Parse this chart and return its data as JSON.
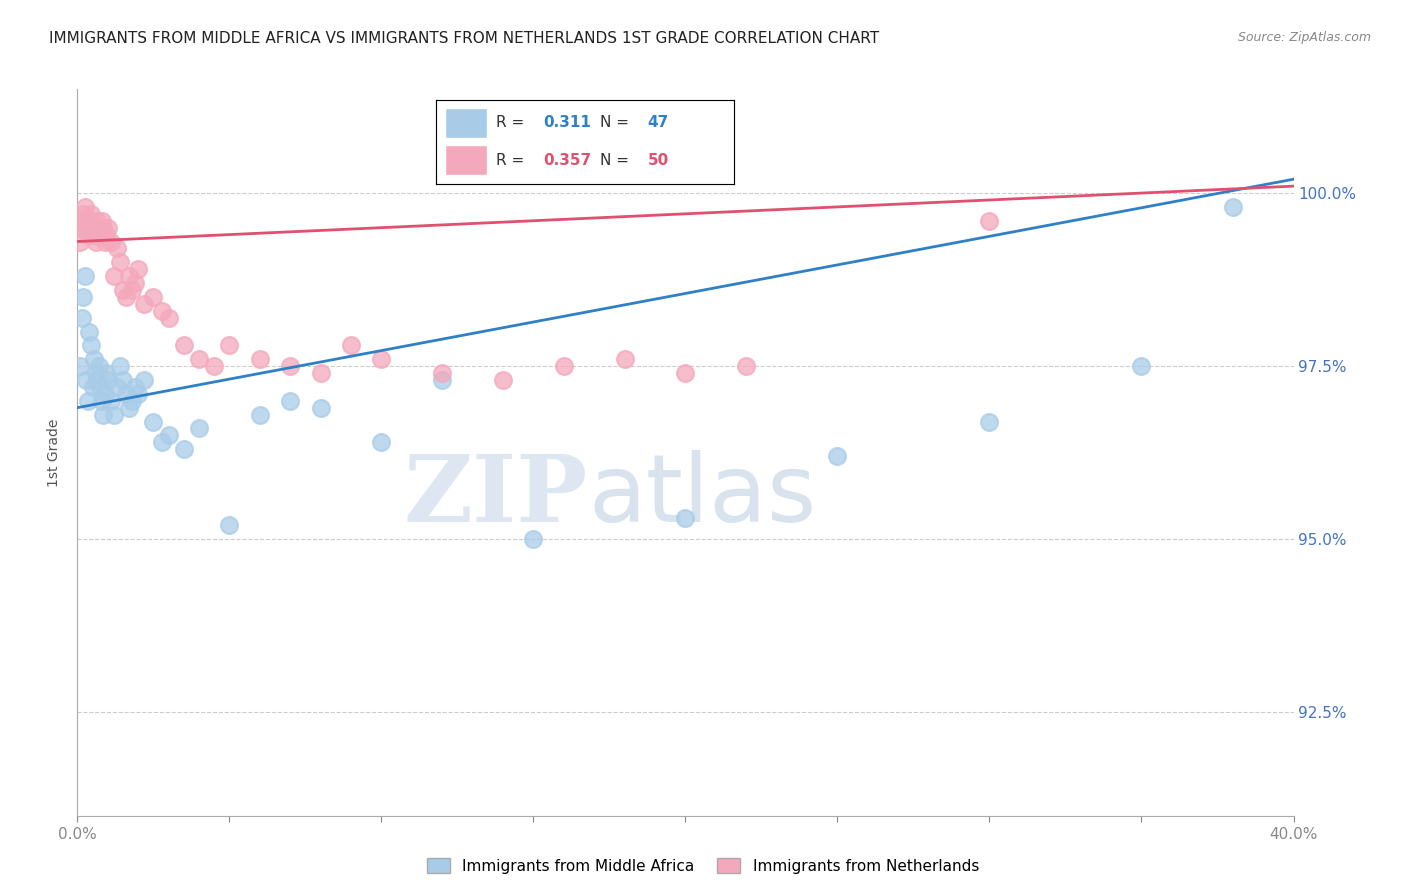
{
  "title": "IMMIGRANTS FROM MIDDLE AFRICA VS IMMIGRANTS FROM NETHERLANDS 1ST GRADE CORRELATION CHART",
  "source": "Source: ZipAtlas.com",
  "ylabel": "1st Grade",
  "y_ticks": [
    92.5,
    95.0,
    97.5,
    100.0
  ],
  "y_tick_labels": [
    "92.5%",
    "95.0%",
    "97.5%",
    "100.0%"
  ],
  "x_min": 0.0,
  "x_max": 40.0,
  "y_min": 91.0,
  "y_max": 101.5,
  "blue_R": 0.311,
  "blue_N": 47,
  "pink_R": 0.357,
  "pink_N": 50,
  "blue_color": "#a8cce8",
  "pink_color": "#f4a8bc",
  "blue_line_color": "#3080c8",
  "pink_line_color": "#e05070",
  "legend_label_blue": "Immigrants from Middle Africa",
  "legend_label_pink": "Immigrants from Netherlands",
  "watermark_zip": "ZIP",
  "watermark_atlas": "atlas",
  "blue_x": [
    0.1,
    0.15,
    0.2,
    0.25,
    0.3,
    0.35,
    0.4,
    0.45,
    0.5,
    0.55,
    0.6,
    0.65,
    0.7,
    0.75,
    0.8,
    0.85,
    0.9,
    0.95,
    1.0,
    1.1,
    1.2,
    1.3,
    1.4,
    1.5,
    1.6,
    1.7,
    1.8,
    1.9,
    2.0,
    2.2,
    2.5,
    2.8,
    3.0,
    3.5,
    4.0,
    5.0,
    6.0,
    7.0,
    8.0,
    10.0,
    12.0,
    15.0,
    20.0,
    25.0,
    30.0,
    35.0,
    38.0
  ],
  "blue_y": [
    97.5,
    98.2,
    98.5,
    98.8,
    97.3,
    97.0,
    98.0,
    97.8,
    97.2,
    97.6,
    97.4,
    97.3,
    97.5,
    97.2,
    97.0,
    96.8,
    97.1,
    97.4,
    97.3,
    97.0,
    96.8,
    97.2,
    97.5,
    97.3,
    97.1,
    96.9,
    97.0,
    97.2,
    97.1,
    97.3,
    96.7,
    96.4,
    96.5,
    96.3,
    96.6,
    95.2,
    96.8,
    97.0,
    96.9,
    96.4,
    97.3,
    95.0,
    95.3,
    96.2,
    96.7,
    97.5,
    99.8
  ],
  "pink_x": [
    0.05,
    0.1,
    0.15,
    0.2,
    0.25,
    0.3,
    0.35,
    0.4,
    0.45,
    0.5,
    0.55,
    0.6,
    0.65,
    0.7,
    0.75,
    0.8,
    0.85,
    0.9,
    0.95,
    1.0,
    1.1,
    1.2,
    1.3,
    1.4,
    1.5,
    1.6,
    1.7,
    1.8,
    1.9,
    2.0,
    2.2,
    2.5,
    2.8,
    3.0,
    3.5,
    4.0,
    4.5,
    5.0,
    6.0,
    7.0,
    8.0,
    9.0,
    10.0,
    12.0,
    14.0,
    16.0,
    18.0,
    20.0,
    22.0,
    30.0
  ],
  "pink_y": [
    99.5,
    99.3,
    99.6,
    99.7,
    99.8,
    99.5,
    99.4,
    99.6,
    99.7,
    99.5,
    99.4,
    99.3,
    99.6,
    99.5,
    99.4,
    99.6,
    99.5,
    99.3,
    99.4,
    99.5,
    99.3,
    98.8,
    99.2,
    99.0,
    98.6,
    98.5,
    98.8,
    98.6,
    98.7,
    98.9,
    98.4,
    98.5,
    98.3,
    98.2,
    97.8,
    97.6,
    97.5,
    97.8,
    97.6,
    97.5,
    97.4,
    97.8,
    97.6,
    97.4,
    97.3,
    97.5,
    97.6,
    97.4,
    97.5,
    99.6
  ]
}
